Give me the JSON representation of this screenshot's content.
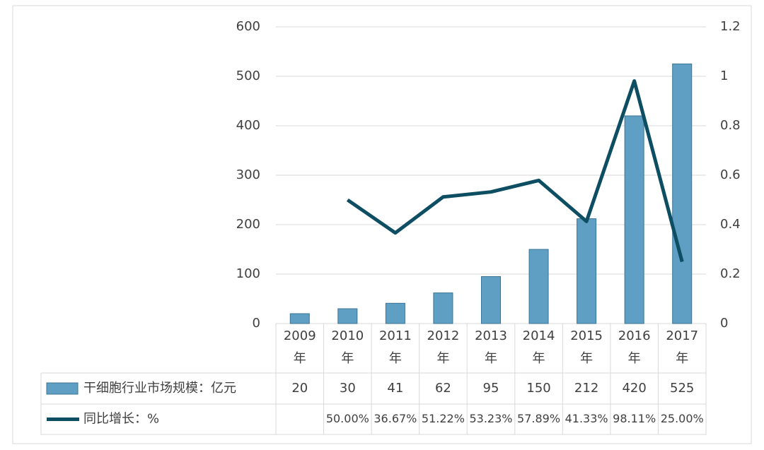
{
  "chart_data": {
    "type": "bar-line",
    "categories": [
      "2009年",
      "2010年",
      "2011年",
      "2012年",
      "2013年",
      "2014年",
      "2015年",
      "2016年",
      "2017年"
    ],
    "series": [
      {
        "name": "干细胞行业市场规模：亿元",
        "type": "bar",
        "color": "#5f9fc4",
        "values": [
          20,
          30,
          41,
          62,
          95,
          150,
          212,
          420,
          525
        ]
      },
      {
        "name": "同比增长：%",
        "type": "line",
        "axis": "y2",
        "color": "#0e4e63",
        "values": [
          null,
          0.5,
          0.3667,
          0.5122,
          0.5323,
          0.5789,
          0.4133,
          0.9811,
          0.25
        ],
        "value_labels": [
          null,
          "50.00%",
          "36.67%",
          "51.22%",
          "53.23%",
          "57.89%",
          "41.33%",
          "98.11%",
          "25.00%"
        ]
      }
    ],
    "ylim": [
      0,
      600
    ],
    "yticks": [
      0,
      100,
      200,
      300,
      400,
      500,
      600
    ],
    "y2lim": [
      0,
      1.2
    ],
    "y2ticks": [
      0,
      0.2,
      0.4,
      0.6,
      0.8,
      1,
      1.2
    ],
    "grid": true
  }
}
